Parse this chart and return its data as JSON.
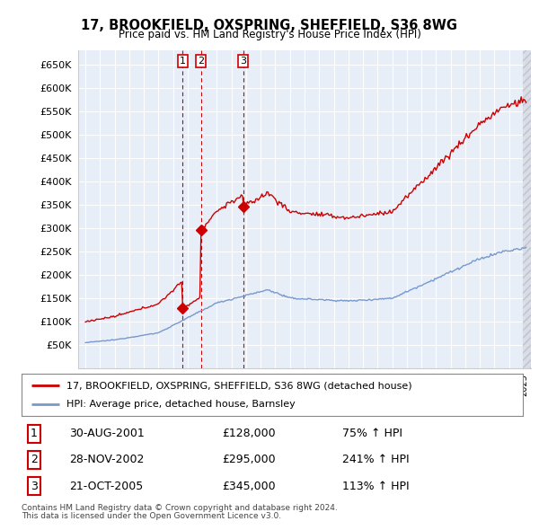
{
  "title": "17, BROOKFIELD, OXSPRING, SHEFFIELD, S36 8WG",
  "subtitle": "Price paid vs. HM Land Registry's House Price Index (HPI)",
  "legend_label_red": "17, BROOKFIELD, OXSPRING, SHEFFIELD, S36 8WG (detached house)",
  "legend_label_blue": "HPI: Average price, detached house, Barnsley",
  "footer1": "Contains HM Land Registry data © Crown copyright and database right 2024.",
  "footer2": "This data is licensed under the Open Government Licence v3.0.",
  "transactions": [
    {
      "num": 1,
      "date": "30-AUG-2001",
      "price": "£128,000",
      "hpi": "75% ↑ HPI",
      "year": 2001.664
    },
    {
      "num": 2,
      "date": "28-NOV-2002",
      "price": "£295,000",
      "hpi": "241% ↑ HPI",
      "year": 2002.914
    },
    {
      "num": 3,
      "date": "21-OCT-2005",
      "price": "£345,000",
      "hpi": "113% ↑ HPI",
      "year": 2005.803
    }
  ],
  "transaction_values": [
    128000,
    295000,
    345000
  ],
  "ylim": [
    0,
    680000
  ],
  "yticks": [
    0,
    50000,
    100000,
    150000,
    200000,
    250000,
    300000,
    350000,
    400000,
    450000,
    500000,
    550000,
    600000,
    650000
  ],
  "xlim_start": 1994.5,
  "xlim_end": 2025.5,
  "color_red": "#cc0000",
  "color_blue": "#7799cc",
  "color_vline": "#cc0000",
  "plot_bg": "#e8eef8",
  "background_color": "#ffffff",
  "grid_color": "#ffffff"
}
